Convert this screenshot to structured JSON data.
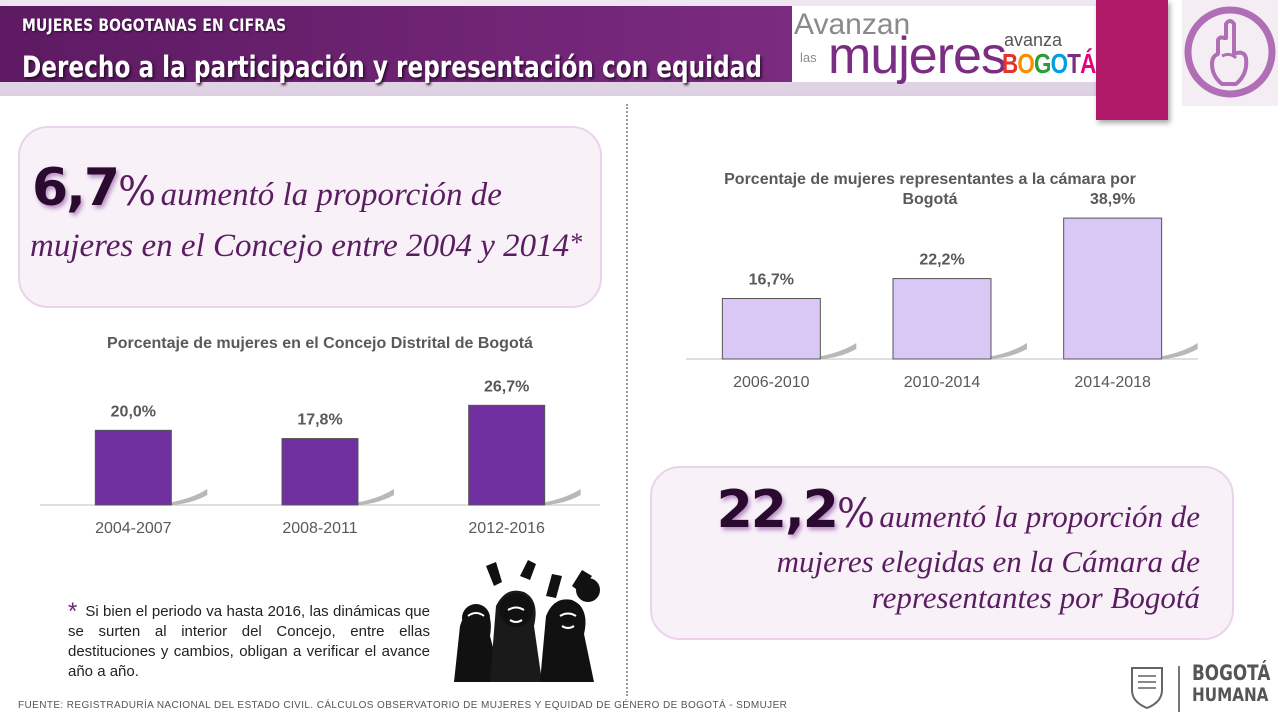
{
  "header": {
    "kicker": "MUJERES BOGOTANAS EN CIFRAS",
    "title": "Derecho a la participación y representación con equidad"
  },
  "slogan": {
    "line_avanzan": "Avanzan",
    "line_las": "las",
    "line_mujeres": "mujeres",
    "line_avanza": "avanza",
    "line_bogota": "BOGOTÁ"
  },
  "callout_left": {
    "number": "6,7",
    "percent_sign": "%",
    "text_line1": "aumentó la proporción de",
    "text_line2": "mujeres en el Concejo entre 2004 y 2014",
    "asterisk": "*"
  },
  "callout_right": {
    "number": "22,2",
    "percent_sign": "%",
    "text_line1": "aumentó la proporción de",
    "text_line2": "mujeres elegidas en la Cámara de",
    "text_line3": "representantes por Bogotá"
  },
  "footnote": {
    "asterisk": "*",
    "text": "Si bien el periodo va hasta 2016, las dinámicas que se surten al interior del Concejo, entre ellas destituciones y cambios, obligan a verificar el avance año a año."
  },
  "source": "FUENTE: REGISTRADURÍA NACIONAL DEL ESTADO CIVIL. CÁLCULOS OBSERVATORIO DE MUJERES Y EQUIDAD DE GÉNERO DE BOGOTÁ - SDMUJER",
  "footer_logo": {
    "line1": "BOGOTÁ",
    "line2": "HUMANA"
  },
  "colors": {
    "brand_purple": "#6a2277",
    "concejo_bar": "#7030a0",
    "camara_bar": "#d9c8f5",
    "magenta": "#b01a68"
  },
  "chart_data": [
    {
      "type": "bar",
      "title": "Porcentaje de mujeres en el Concejo Distrital de Bogotá",
      "categories": [
        "2004-2007",
        "2008-2011",
        "2012-2016"
      ],
      "values": [
        20.0,
        17.8,
        26.7
      ],
      "value_labels": [
        "20,0%",
        "17,8%",
        "26,7%"
      ],
      "ylim": [
        0,
        30
      ],
      "grid": false,
      "bar_color": "#7030a0"
    },
    {
      "type": "bar",
      "title": "Porcentaje de mujeres representantes a la cámara por Bogotá",
      "categories": [
        "2006-2010",
        "2010-2014",
        "2014-2018"
      ],
      "values": [
        16.7,
        22.2,
        38.9
      ],
      "value_labels": [
        "16,7%",
        "22,2%",
        "38,9%"
      ],
      "ylim": [
        0,
        45
      ],
      "grid": false,
      "bar_color": "#d9c8f5"
    }
  ]
}
